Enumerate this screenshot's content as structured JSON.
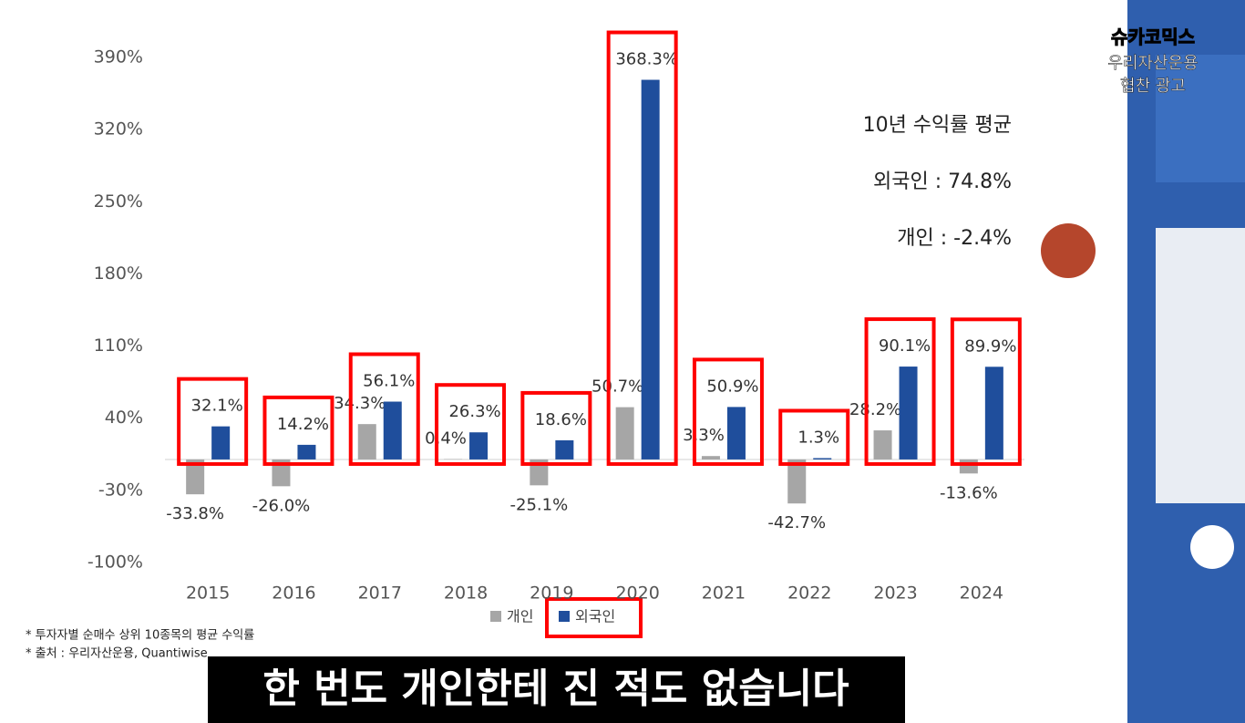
{
  "chart_data": {
    "type": "bar",
    "categories": [
      "2015",
      "2016",
      "2017",
      "2018",
      "2019",
      "2020",
      "2021",
      "2022",
      "2023",
      "2024"
    ],
    "series": [
      {
        "name": "개인",
        "color": "#a6a6a6",
        "values": [
          -33.8,
          -26.0,
          34.3,
          0.4,
          -25.1,
          50.7,
          3.3,
          -42.7,
          28.2,
          -13.6
        ],
        "value_labels": [
          "-33.8%",
          "-26.0%",
          "34.3%",
          "0.4%",
          "-25.1%",
          "50.7%",
          "3.3%",
          "-42.7%",
          "28.2%",
          "-13.6%"
        ]
      },
      {
        "name": "외국인",
        "color": "#1f4e9c",
        "values": [
          32.1,
          14.2,
          56.1,
          26.3,
          18.6,
          368.3,
          50.9,
          1.3,
          90.1,
          89.9
        ],
        "value_labels": [
          "32.1%",
          "14.2%",
          "56.1%",
          "26.3%",
          "18.6%",
          "368.3%",
          "50.9%",
          "1.3%",
          "90.1%",
          "89.9%"
        ]
      }
    ],
    "ylim": [
      -100,
      390
    ],
    "yticks": [
      {
        "value": -100,
        "label": "-100%"
      },
      {
        "value": -30,
        "label": "-30%"
      },
      {
        "value": 40,
        "label": "40%"
      },
      {
        "value": 110,
        "label": "110%"
      },
      {
        "value": 180,
        "label": "180%"
      },
      {
        "value": 250,
        "label": "250%"
      },
      {
        "value": 320,
        "label": "320%"
      },
      {
        "value": 390,
        "label": "390%"
      }
    ],
    "annotations": [
      "10년 수익률 평균",
      "외국인 : 74.8%",
      "개인 : -2.4%"
    ],
    "notes": [
      "* 투자자별 순매수 상위 10종목의 평균 수익률",
      "* 출처 : 우리자산운용, Quantiwise"
    ]
  },
  "caption": "한 번도 개인한테 진 적도 없습니다",
  "overlay": {
    "brand": "슈카코믹스",
    "sponsor": "우리자산운용",
    "ad": "협찬 광고"
  }
}
